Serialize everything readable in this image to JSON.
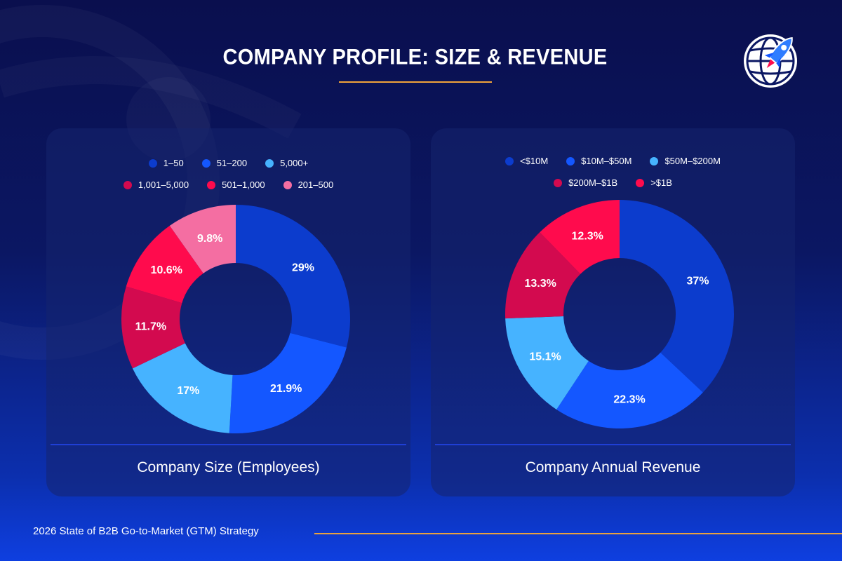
{
  "page": {
    "title": "COMPANY PROFILE: SIZE & REVENUE",
    "footer": "2026 State of B2B Go-to-Market (GTM) Strategy"
  },
  "colors": {
    "accent": "#f2a33a",
    "background": "#0b1763"
  },
  "chart_data": [
    {
      "type": "pie",
      "title": "Company Size (Employees)",
      "legend_rows": [
        [
          0,
          1,
          2
        ],
        [
          3,
          4,
          5
        ]
      ],
      "slices": [
        {
          "label": "1–50",
          "value": 29,
          "display": "29%",
          "color": "#0c3ccd"
        },
        {
          "label": "51–200",
          "value": 21.9,
          "display": "21.9%",
          "color": "#1457ff"
        },
        {
          "label": "5,000+",
          "value": 17,
          "display": "17%",
          "color": "#46b3ff"
        },
        {
          "label": "1,001–5,000",
          "value": 11.7,
          "display": "11.7%",
          "color": "#d30a4f"
        },
        {
          "label": "501–1,000",
          "value": 10.6,
          "display": "10.6%",
          "color": "#ff0b4d"
        },
        {
          "label": "201–500",
          "value": 9.8,
          "display": "9.8%",
          "color": "#f46ea2"
        }
      ]
    },
    {
      "type": "pie",
      "title": "Company Annual Revenue",
      "legend_rows": [
        [
          0,
          1,
          2
        ],
        [
          3,
          4
        ]
      ],
      "slices": [
        {
          "label": "<$10M",
          "value": 37,
          "display": "37%",
          "color": "#0c3ccd"
        },
        {
          "label": "$10M–$50M",
          "value": 22.3,
          "display": "22.3%",
          "color": "#1457ff"
        },
        {
          "label": "$50M–$200M",
          "value": 15.1,
          "display": "15.1%",
          "color": "#46b3ff"
        },
        {
          "label": "$200M–$1B",
          "value": 13.3,
          "display": "13.3%",
          "color": "#d30a4f"
        },
        {
          "label": ">$1B",
          "value": 12.3,
          "display": "12.3%",
          "color": "#ff0b4d"
        }
      ]
    }
  ]
}
